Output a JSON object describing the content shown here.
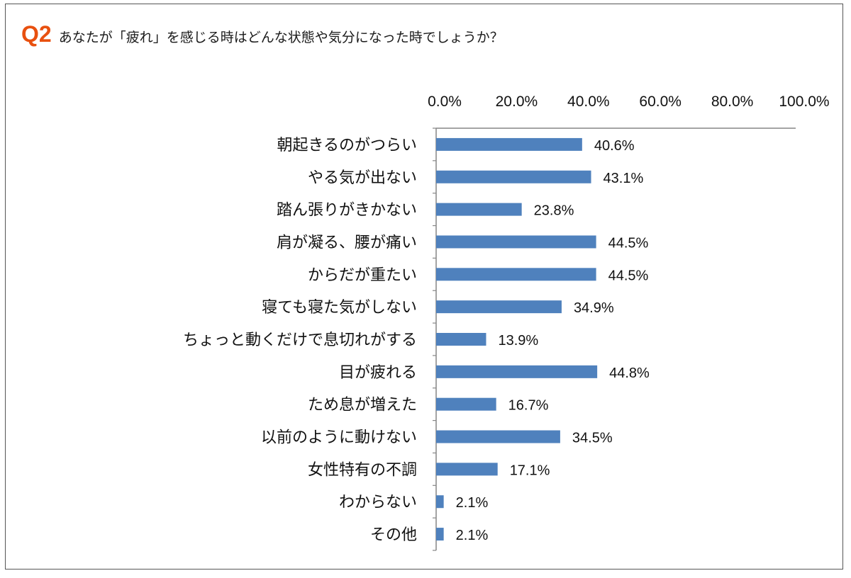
{
  "title": {
    "label": "Q2",
    "text": "あなたが「疲れ」を感じる時はどんな状態や気分になった時でしょうか？"
  },
  "colors": {
    "bar": "#4f81bd",
    "accent": "#e8500f",
    "axis": "#868686"
  },
  "chart_data": {
    "type": "bar",
    "orientation": "horizontal",
    "categories": [
      "朝起きるのがつらい",
      "やる気が出ない",
      "踏ん張りがきかない",
      "肩が凝る、腰が痛い",
      "からだが重たい",
      "寝ても寝た気がしない",
      "ちょっと動くだけで息切れがする",
      "目が疲れる",
      "ため息が増えた",
      "以前のように動けない",
      "女性特有の不調",
      "わからない",
      "その他"
    ],
    "values": [
      40.6,
      43.1,
      23.8,
      44.5,
      44.5,
      34.9,
      13.9,
      44.8,
      16.7,
      34.5,
      17.1,
      2.1,
      2.1
    ],
    "value_labels": [
      "40.6%",
      "43.1%",
      "23.8%",
      "44.5%",
      "44.5%",
      "34.9%",
      "13.9%",
      "44.8%",
      "16.7%",
      "34.5%",
      "17.1%",
      "2.1%",
      "2.1%"
    ],
    "xlim": [
      0,
      100
    ],
    "x_ticks": [
      0,
      20,
      40,
      60,
      80,
      100
    ],
    "x_tick_labels": [
      "0.0%",
      "20.0%",
      "40.0%",
      "60.0%",
      "80.0%",
      "100.0%"
    ],
    "axis_position": "top",
    "grid": false,
    "legend": "none"
  }
}
